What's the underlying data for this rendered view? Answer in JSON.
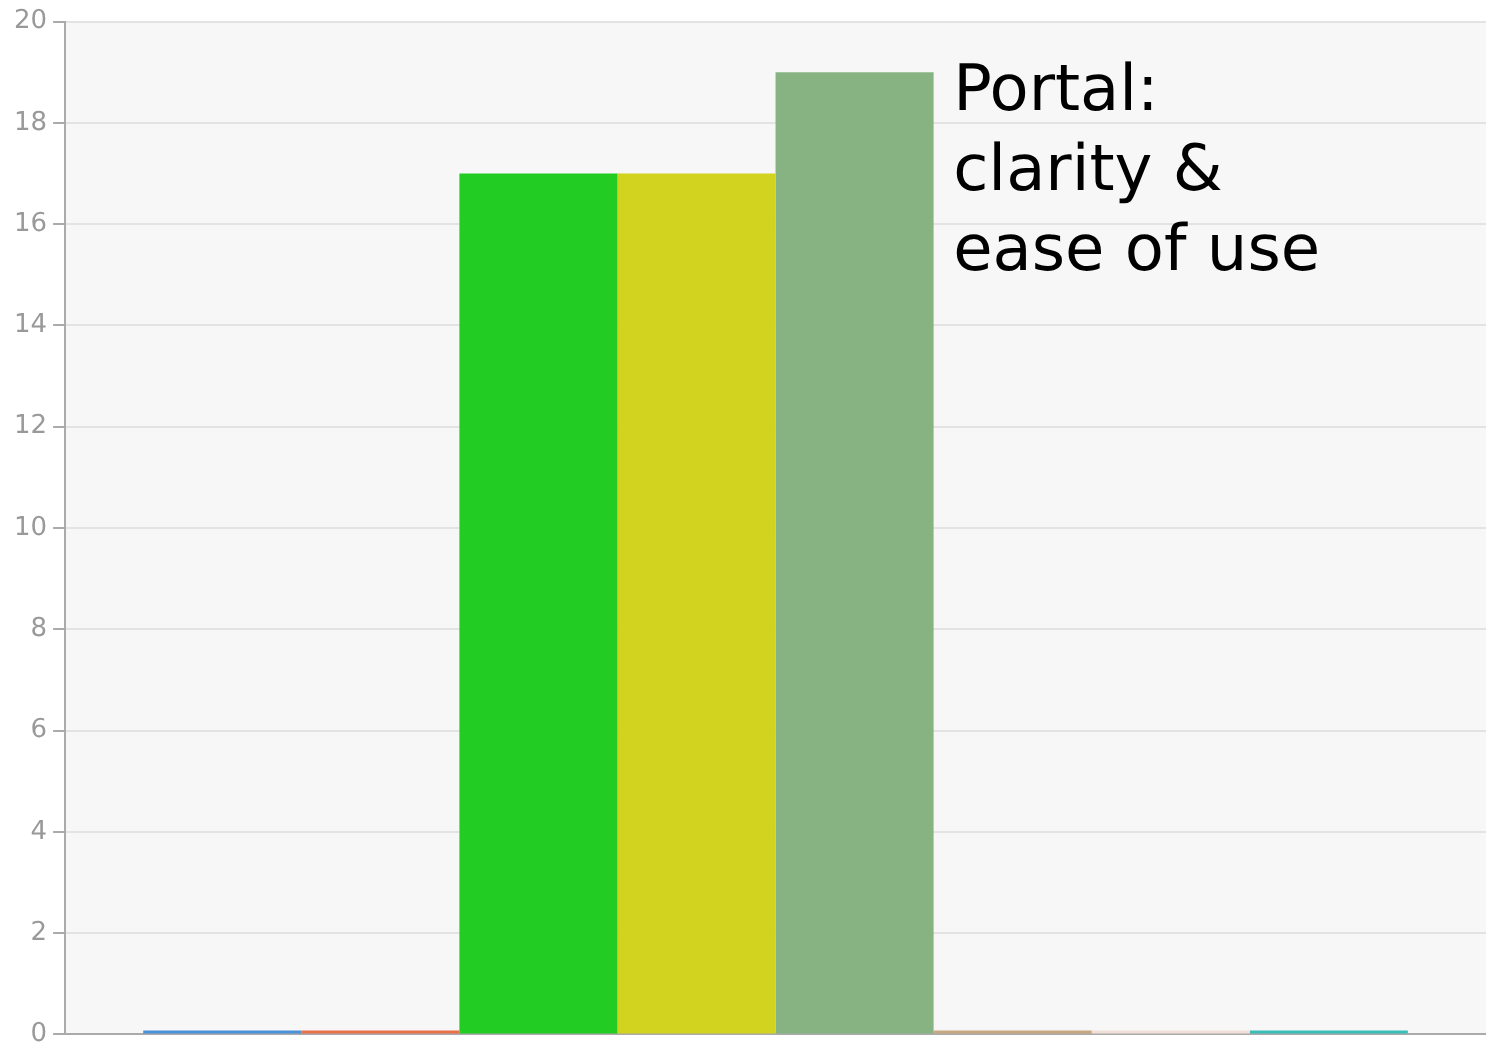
{
  "chart_data": {
    "type": "bar",
    "categories": [
      null
    ],
    "series": [
      {
        "color": "#4a90d9",
        "values": [
          0
        ]
      },
      {
        "color": "#e8704a",
        "values": [
          0
        ]
      },
      {
        "color": "#22cc22",
        "values": [
          17
        ]
      },
      {
        "color": "#d1d31f",
        "values": [
          17
        ]
      },
      {
        "color": "#87b383",
        "values": [
          19
        ]
      },
      {
        "color": "#c8a882",
        "values": [
          0
        ]
      },
      {
        "color": "#f2e0d8",
        "values": [
          0
        ]
      },
      {
        "color": "#3bbdb8",
        "values": [
          0
        ]
      }
    ],
    "ylim": [
      0,
      20
    ],
    "yticks": [
      0,
      2,
      4,
      6,
      8,
      10,
      12,
      14,
      16,
      18,
      20
    ],
    "grid": "y",
    "legend": false,
    "annotations": [
      "Portal:\nclarity &\nease of use"
    ]
  }
}
